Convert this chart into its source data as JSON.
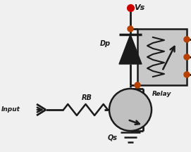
{
  "bg_color": "#f0f0f0",
  "line_color": "#1a1a1a",
  "wire_color": "#1a1a1a",
  "node_color": "#b84000",
  "relay_bg": "#c8c8c8",
  "relay_border": "#1a1a1a",
  "vs_color": "#cc0000",
  "tr_bg": "#c0c0c0",
  "label_vs": "Vs",
  "label_dp": "Dp",
  "label_rb": "RB",
  "label_input": "Input",
  "label_qs": "Qs",
  "label_relay": "Relay"
}
